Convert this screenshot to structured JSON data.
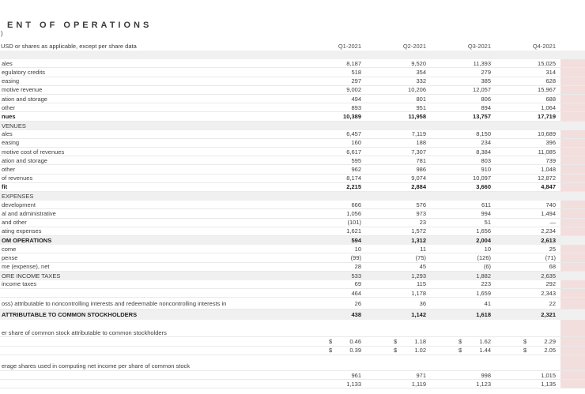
{
  "header": {
    "title": "ENT OF OPERATIONS",
    "title_paren": ")",
    "subtitle": "USD or shares as applicable, except per share data",
    "columns": [
      "Q1-2021",
      "Q2-2021",
      "Q3-2021",
      "Q4-2021"
    ]
  },
  "colors": {
    "highlight_column": "#f3dede",
    "section_band": "#f0f0f0",
    "row_separator": "#eaeaea"
  },
  "table": {
    "currency_symbol": "$",
    "rows": [
      {
        "label": "",
        "cls": "band",
        "values": null
      },
      {
        "label": "ales",
        "values": [
          "8,187",
          "9,520",
          "11,393",
          "15,025"
        ]
      },
      {
        "label": "egulatory credits",
        "values": [
          "518",
          "354",
          "279",
          "314"
        ]
      },
      {
        "label": "easing",
        "values": [
          "297",
          "332",
          "385",
          "628"
        ]
      },
      {
        "label": "motive revenue",
        "values": [
          "9,002",
          "10,206",
          "12,057",
          "15,967"
        ]
      },
      {
        "label": "ation and storage",
        "values": [
          "494",
          "801",
          "806",
          "688"
        ]
      },
      {
        "label": "other",
        "values": [
          "893",
          "951",
          "894",
          "1,064"
        ]
      },
      {
        "label": "nues",
        "cls": "boldrow",
        "values": [
          "10,389",
          "11,958",
          "13,757",
          "17,719"
        ]
      },
      {
        "label": "VENUES",
        "cls": "band",
        "values": null
      },
      {
        "label": "ales",
        "values": [
          "6,457",
          "7,119",
          "8,150",
          "10,689"
        ]
      },
      {
        "label": "easing",
        "values": [
          "160",
          "188",
          "234",
          "396"
        ]
      },
      {
        "label": "motive cost of revenues",
        "values": [
          "6,617",
          "7,307",
          "8,384",
          "11,085"
        ]
      },
      {
        "label": "ation and storage",
        "values": [
          "595",
          "781",
          "803",
          "739"
        ]
      },
      {
        "label": "other",
        "values": [
          "962",
          "986",
          "910",
          "1,048"
        ]
      },
      {
        "label": "of revenues",
        "values": [
          "8,174",
          "9,074",
          "10,097",
          "12,872"
        ]
      },
      {
        "label": "fit",
        "cls": "boldrow",
        "values": [
          "2,215",
          "2,884",
          "3,660",
          "4,847"
        ]
      },
      {
        "label": "EXPENSES",
        "cls": "band",
        "values": null
      },
      {
        "label": "development",
        "values": [
          "666",
          "576",
          "611",
          "740"
        ]
      },
      {
        "label": "al and administrative",
        "values": [
          "1,056",
          "973",
          "994",
          "1,494"
        ]
      },
      {
        "label": "and other",
        "values": [
          "(101)",
          "23",
          "51",
          "—"
        ]
      },
      {
        "label": "ating expenses",
        "values": [
          "1,621",
          "1,572",
          "1,656",
          "2,234"
        ]
      },
      {
        "label": "OM OPERATIONS",
        "cls": "band boldrow",
        "values": [
          "594",
          "1,312",
          "2,004",
          "2,613"
        ]
      },
      {
        "label": "come",
        "values": [
          "10",
          "11",
          "10",
          "25"
        ]
      },
      {
        "label": "pense",
        "values": [
          "(99)",
          "(75)",
          "(126)",
          "(71)"
        ]
      },
      {
        "label": "me (expense), net",
        "values": [
          "28",
          "45",
          "(6)",
          "68"
        ]
      },
      {
        "label": "ORE INCOME TAXES",
        "cls": "band",
        "values": [
          "533",
          "1,293",
          "1,882",
          "2,635"
        ]
      },
      {
        "label": "income taxes",
        "values": [
          "69",
          "115",
          "223",
          "292"
        ]
      },
      {
        "label": "",
        "values": [
          "464",
          "1,178",
          "1,659",
          "2,343"
        ]
      },
      {
        "label": "oss) attributable to noncontrolling interests and redeemable noncontrolling interests in",
        "values": [
          "26",
          "36",
          "41",
          "22"
        ],
        "h": 15
      },
      {
        "label": "ATTRIBUTABLE TO COMMON STOCKHOLDERS",
        "cls": "band boldrow",
        "values": [
          "438",
          "1,142",
          "1,618",
          "2,321"
        ],
        "h": 13
      },
      {
        "label": "",
        "cls": "blank",
        "values": null,
        "h": 11
      },
      {
        "label": "er share of common stock attributable to common stockholders",
        "values": null
      },
      {
        "label": "",
        "values": [
          "0.46",
          "1.18",
          "1.62",
          "2.29"
        ],
        "currency": true
      },
      {
        "label": "",
        "values": [
          "0.39",
          "1.02",
          "1.44",
          "2.05"
        ],
        "currency": true
      },
      {
        "label": "",
        "cls": "blank",
        "values": null,
        "h": 9
      },
      {
        "label": "erage shares used in computing net income per share of common stock",
        "values": null
      },
      {
        "label": "",
        "values": [
          "961",
          "971",
          "998",
          "1,015"
        ]
      },
      {
        "label": "",
        "values": [
          "1,133",
          "1,119",
          "1,123",
          "1,135"
        ]
      }
    ]
  }
}
